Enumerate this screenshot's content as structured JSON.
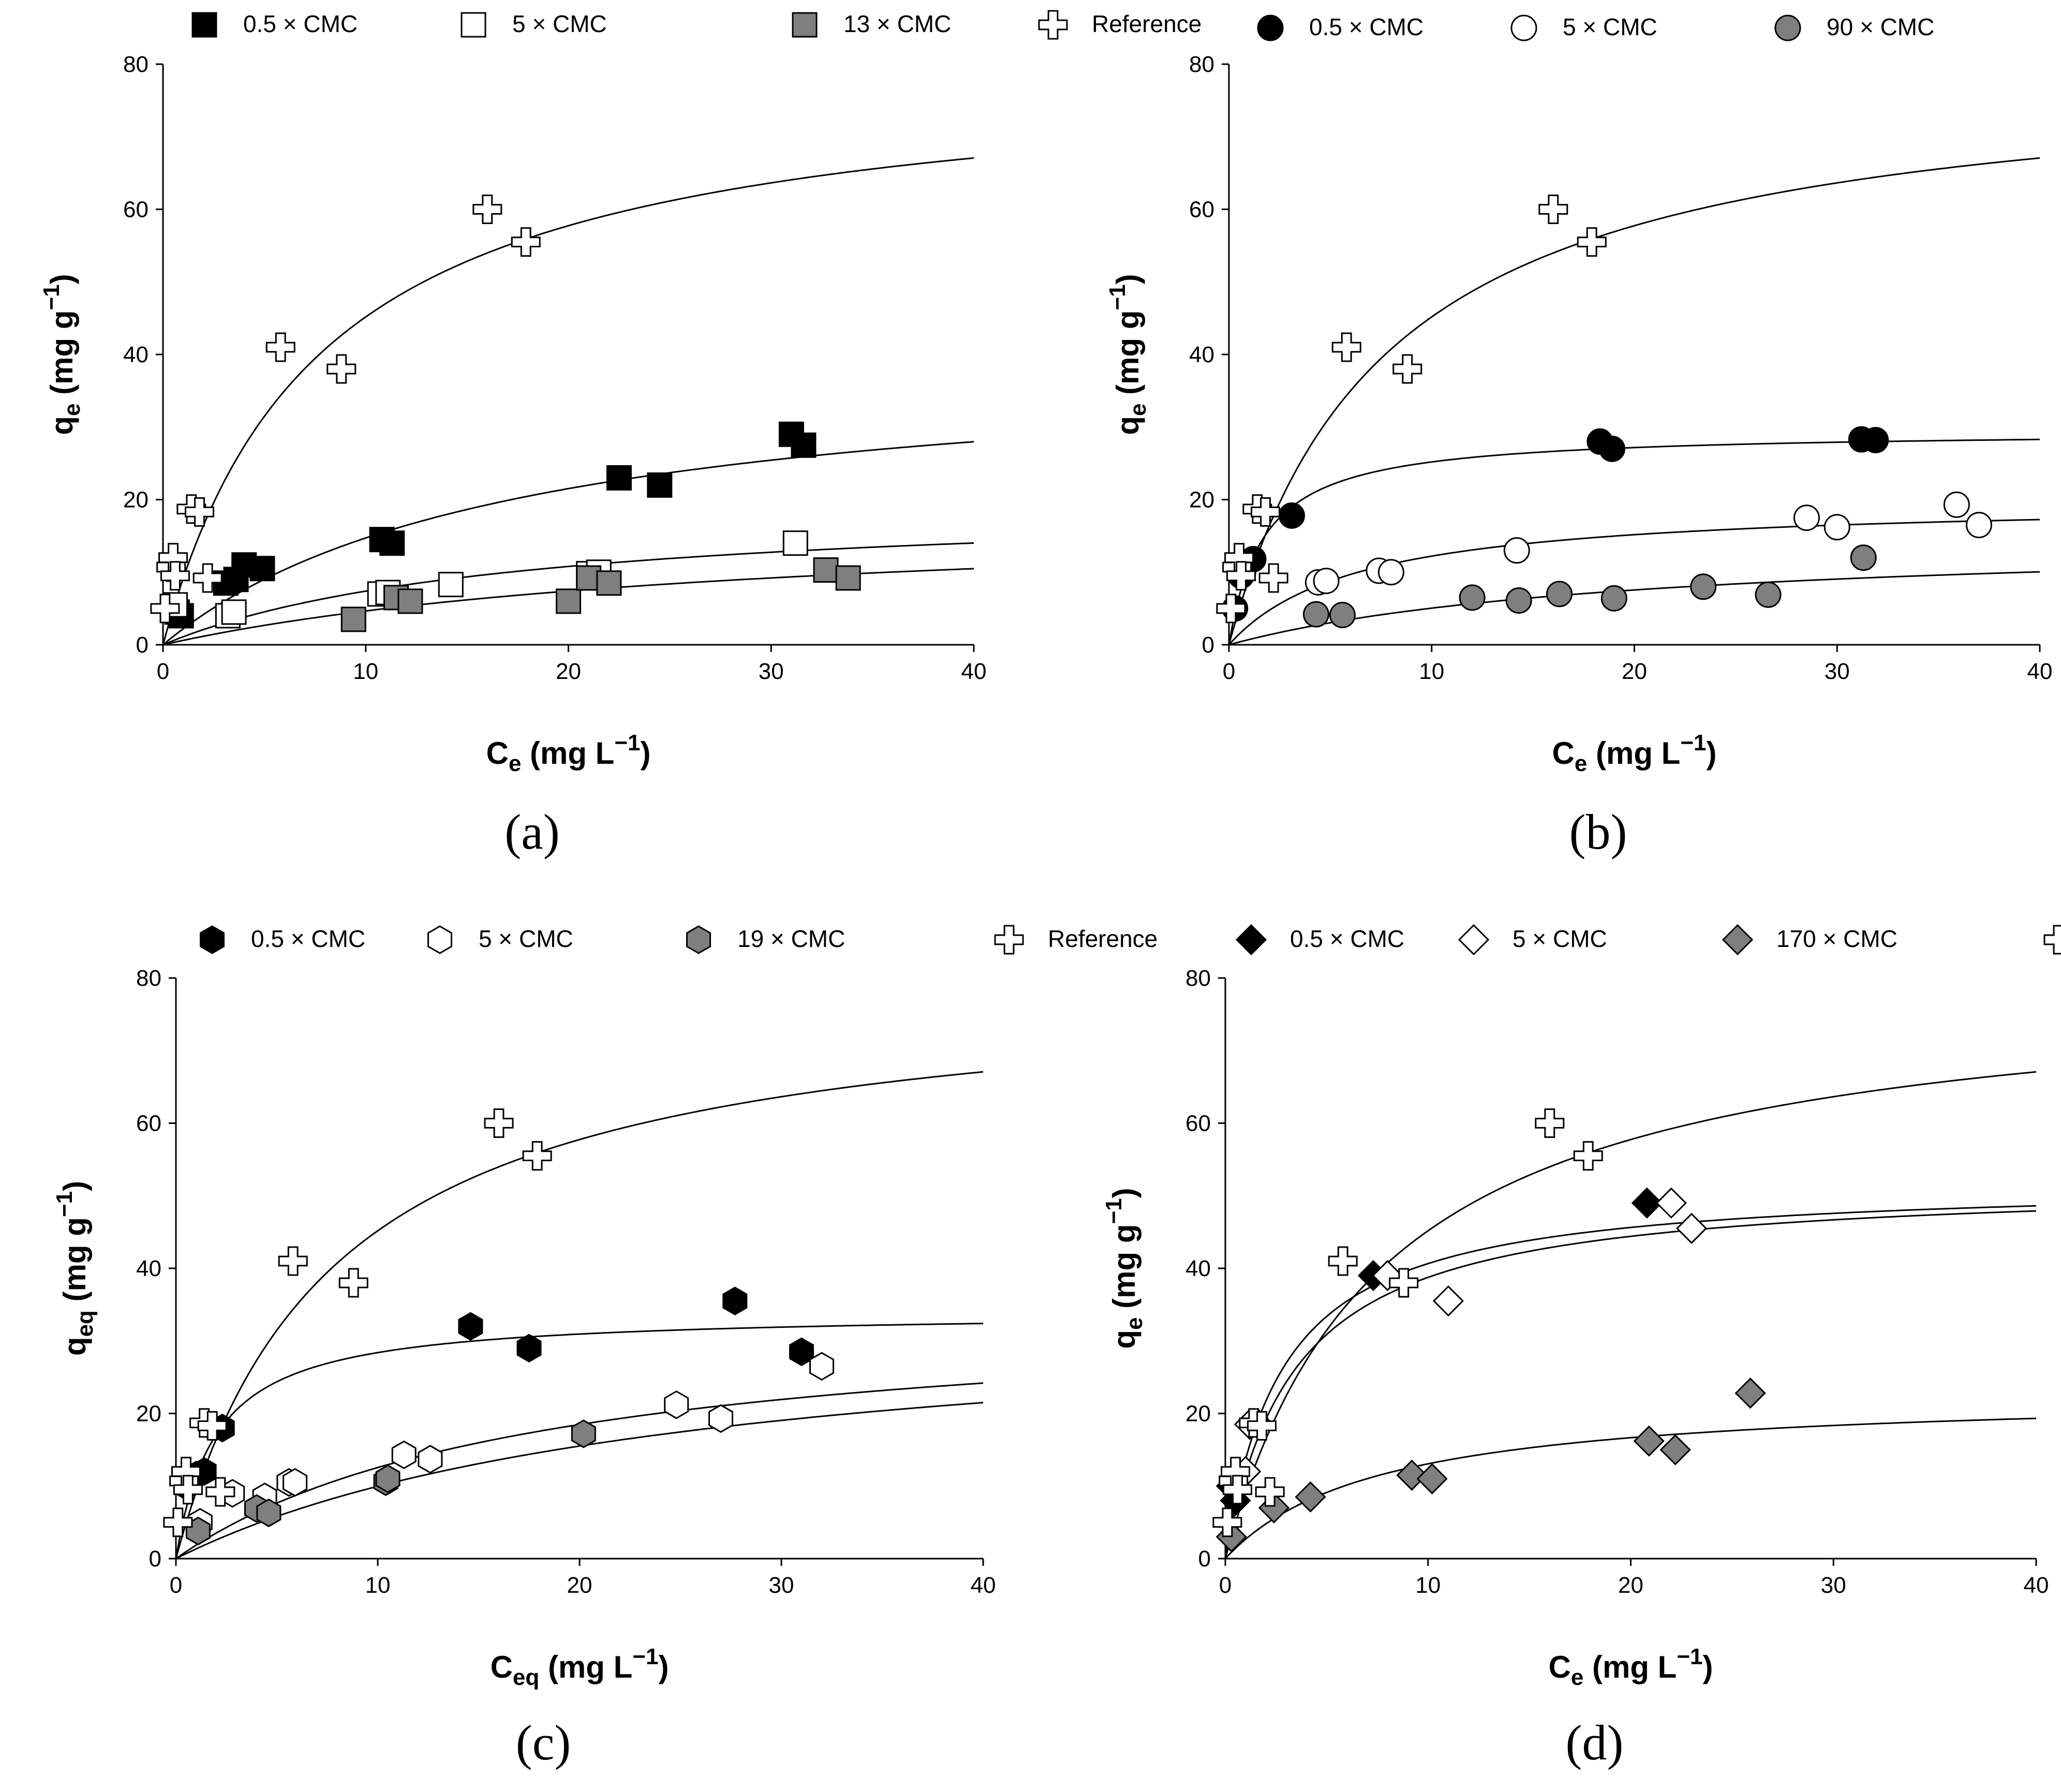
{
  "figure": {
    "panels": [
      "a",
      "b",
      "c",
      "d"
    ]
  },
  "style": {
    "black": "#000000",
    "white": "#ffffff",
    "gray": "#7f7f7f"
  },
  "chart_data": [
    {
      "panel_label": "(a)",
      "type": "scatter",
      "marker": "square",
      "xlabel": {
        "main": "C",
        "sub": "e",
        "unit": " (mg L",
        "sup": "−1",
        "close": ")"
      },
      "ylabel": {
        "main": "q",
        "sub": "e",
        "unit": " (mg g",
        "sup": "−1",
        "close": ")"
      },
      "xlim": [
        0,
        40
      ],
      "ylim": [
        0,
        80
      ],
      "xticks": [
        "0",
        "10",
        "20",
        "30",
        "40"
      ],
      "yticks": [
        "0",
        "20",
        "40",
        "60",
        "80"
      ],
      "legend": [
        "0.5 × CMC",
        "5 × CMC",
        "13 × CMC",
        "Reference"
      ],
      "series": [
        {
          "name": "0.5 × CMC",
          "fill": "black",
          "points": [
            [
              0.7,
              4.5
            ],
            [
              0.9,
              4
            ],
            [
              3.1,
              8.5
            ],
            [
              3.6,
              9
            ],
            [
              4,
              11
            ],
            [
              4.9,
              10.5
            ],
            [
              10.8,
              14.5
            ],
            [
              11.3,
              14
            ],
            [
              22.5,
              23
            ],
            [
              24.5,
              22
            ],
            [
              31,
              29
            ],
            [
              31.6,
              27.5
            ]
          ],
          "fit": {
            "qmax": 40,
            "K": 0.0582
          }
        },
        {
          "name": "5 × CMC",
          "fill": "white",
          "points": [
            [
              0.6,
              5.5
            ],
            [
              3.2,
              4
            ],
            [
              3.5,
              4.5
            ],
            [
              10.7,
              7
            ],
            [
              11.1,
              7.2
            ],
            [
              14.2,
              8.3
            ],
            [
              21,
              9.8
            ],
            [
              21.5,
              10
            ],
            [
              31.2,
              14
            ]
          ],
          "fit": {
            "qmax": 20,
            "K": 0.0586
          }
        },
        {
          "name": "13 × CMC",
          "fill": "gray",
          "points": [
            [
              9.4,
              3.5
            ],
            [
              11.5,
              6.5
            ],
            [
              12.2,
              6
            ],
            [
              20,
              6
            ],
            [
              21,
              9.2
            ],
            [
              22,
              8.5
            ],
            [
              32.7,
              10.3
            ],
            [
              33.8,
              9.2
            ]
          ],
          "fit": {
            "qmax": 18,
            "K": 0.0349
          }
        },
        {
          "name": "Reference",
          "fill": "white",
          "points": [
            [
              0.1,
              5
            ],
            [
              0.4,
              10.7
            ],
            [
              0.5,
              12
            ],
            [
              0.6,
              9.5
            ],
            [
              1.4,
              18.7
            ],
            [
              1.8,
              18.3
            ],
            [
              2.2,
              9.2
            ],
            [
              5.8,
              41
            ],
            [
              8.8,
              38
            ],
            [
              16,
              60
            ],
            [
              17.9,
              55.5
            ]
          ],
          "fit": {
            "qmax": 80,
            "K": 0.1297
          }
        }
      ]
    },
    {
      "panel_label": "(b)",
      "type": "scatter",
      "marker": "circle",
      "xlabel": {
        "main": "C",
        "sub": "e",
        "unit": " (mg L",
        "sup": "−1",
        "close": ")"
      },
      "ylabel": {
        "main": "q",
        "sub": "e",
        "unit": " (mg g",
        "sup": "−1",
        "close": ")"
      },
      "xlim": [
        0,
        40
      ],
      "ylim": [
        0,
        80
      ],
      "xticks": [
        "0",
        "10",
        "20",
        "30",
        "40"
      ],
      "yticks": [
        "0",
        "20",
        "40",
        "60",
        "80"
      ],
      "legend": [
        "0.5 × CMC",
        "5 × CMC",
        "90 × CMC",
        "Reference"
      ],
      "series": [
        {
          "name": "0.5 × CMC",
          "fill": "black",
          "points": [
            [
              0.3,
              5
            ],
            [
              0.6,
              9.5
            ],
            [
              0.7,
              10
            ],
            [
              1.2,
              11.8
            ],
            [
              3.1,
              17.8
            ],
            [
              18.3,
              28
            ],
            [
              18.9,
              27
            ],
            [
              31.2,
              28.3
            ],
            [
              31.9,
              28.2
            ]
          ],
          "fit": {
            "qmax": 29.5,
            "K": 0.5845
          }
        },
        {
          "name": "5 × CMC",
          "fill": "white",
          "points": [
            [
              4.4,
              8.6
            ],
            [
              4.8,
              8.8
            ],
            [
              7.4,
              10.2
            ],
            [
              8,
              10
            ],
            [
              14.2,
              13
            ],
            [
              28.5,
              17.5
            ],
            [
              30,
              16.2
            ],
            [
              35.9,
              19.3
            ],
            [
              37,
              16.5
            ]
          ],
          "fit": {
            "qmax": 20,
            "K": 0.1568
          }
        },
        {
          "name": "90 × CMC",
          "fill": "gray",
          "points": [
            [
              4.3,
              4.2
            ],
            [
              5.6,
              4.1
            ],
            [
              12,
              6.5
            ],
            [
              14.3,
              6.1
            ],
            [
              16.3,
              7
            ],
            [
              19,
              6.4
            ],
            [
              23.4,
              8
            ],
            [
              26.6,
              6.9
            ],
            [
              31.3,
              12
            ]
          ],
          "fit": {
            "qmax": 15,
            "K": 0.0507
          }
        },
        {
          "name": "Reference",
          "fill": "white",
          "points": [
            [
              0.1,
              5
            ],
            [
              0.4,
              10.7
            ],
            [
              0.5,
              12
            ],
            [
              0.6,
              9.5
            ],
            [
              1.4,
              18.7
            ],
            [
              1.8,
              18.3
            ],
            [
              2.2,
              9.2
            ],
            [
              5.8,
              41
            ],
            [
              8.8,
              38
            ],
            [
              16,
              60
            ],
            [
              17.9,
              55.5
            ]
          ],
          "fit": {
            "qmax": 80,
            "K": 0.1297
          }
        }
      ]
    },
    {
      "panel_label": "(c)",
      "type": "scatter",
      "marker": "hexagon",
      "xlabel": {
        "main": "C",
        "sub": "eq",
        "unit": " (mg L",
        "sup": "−1",
        "close": ")"
      },
      "ylabel": {
        "main": "q",
        "sub": "eq",
        "unit": " (mg g",
        "sup": "−1",
        "close": ")"
      },
      "xlim": [
        0,
        40
      ],
      "ylim": [
        0,
        80
      ],
      "xticks": [
        "0",
        "10",
        "20",
        "30",
        "40"
      ],
      "yticks": [
        "0",
        "20",
        "40",
        "60",
        "80"
      ],
      "legend": [
        "0.5 × CMC",
        "5 × CMC",
        "19 × CMC",
        "Reference"
      ],
      "series": [
        {
          "name": "0.5 × CMC",
          "fill": "black",
          "points": [
            [
              0.5,
              10
            ],
            [
              1,
              11.5
            ],
            [
              1.4,
              12
            ],
            [
              2.3,
              18
            ],
            [
              14.6,
              32
            ],
            [
              17.5,
              29
            ],
            [
              27.7,
              35.5
            ],
            [
              31,
              28.5
            ]
          ],
          "fit": {
            "qmax": 34,
            "K": 0.5059
          }
        },
        {
          "name": "5 × CMC",
          "fill": "white",
          "points": [
            [
              1.2,
              5
            ],
            [
              2.8,
              9
            ],
            [
              4.4,
              8.5
            ],
            [
              5.6,
              10.5
            ],
            [
              5.9,
              10.5
            ],
            [
              11.3,
              14.3
            ],
            [
              12.6,
              13.7
            ],
            [
              24.8,
              21.2
            ],
            [
              27,
              19.3
            ],
            [
              32,
              26.5
            ]
          ],
          "fit": {
            "qmax": 35,
            "K": 0.0559
          }
        },
        {
          "name": "19 × CMC",
          "fill": "gray",
          "points": [
            [
              1.1,
              3.8
            ],
            [
              4,
              6.9
            ],
            [
              4.6,
              6.3
            ],
            [
              10.4,
              10.6
            ],
            [
              10.5,
              11
            ],
            [
              20.2,
              17.2
            ]
          ],
          "fit": {
            "qmax": 35,
            "K": 0.0398
          }
        },
        {
          "name": "Reference",
          "fill": "white",
          "points": [
            [
              0.1,
              5
            ],
            [
              0.4,
              10.7
            ],
            [
              0.5,
              12
            ],
            [
              0.6,
              9.5
            ],
            [
              1.4,
              18.7
            ],
            [
              1.8,
              18.3
            ],
            [
              2.2,
              9.2
            ],
            [
              5.8,
              41
            ],
            [
              8.8,
              38
            ],
            [
              16,
              60
            ],
            [
              17.9,
              55.5
            ]
          ],
          "fit": {
            "qmax": 80,
            "K": 0.1297
          }
        }
      ]
    },
    {
      "panel_label": "(d)",
      "type": "scatter",
      "marker": "diamond",
      "xlabel": {
        "main": "C",
        "sub": "e",
        "unit": " (mg L",
        "sup": "−1",
        "close": ")"
      },
      "ylabel": {
        "main": "q",
        "sub": "e",
        "unit": " (mg g",
        "sup": "−1",
        "close": ")"
      },
      "xlim": [
        0,
        40
      ],
      "ylim": [
        0,
        80
      ],
      "xticks": [
        "0",
        "10",
        "20",
        "30",
        "40"
      ],
      "yticks": [
        "0",
        "20",
        "40",
        "60",
        "80"
      ],
      "legend": [
        "0.5 × CMC",
        "5 × CMC",
        "170 × CMC",
        "Reference"
      ],
      "series": [
        {
          "name": "0.5 × CMC",
          "fill": "black",
          "points": [
            [
              0.3,
              10
            ],
            [
              0.5,
              8
            ],
            [
              7.3,
              39
            ],
            [
              20.8,
              49
            ]
          ],
          "fit": {
            "qmax": 52,
            "K": 0.3583
          }
        },
        {
          "name": "5 × CMC",
          "fill": "white",
          "points": [
            [
              0.6,
              11.5
            ],
            [
              1,
              12
            ],
            [
              1.2,
              18.5
            ],
            [
              1.6,
              18.6
            ],
            [
              8,
              39
            ],
            [
              11,
              35.5
            ],
            [
              22,
              49
            ],
            [
              23,
              45.5
            ]
          ],
          "fit": {
            "qmax": 52,
            "K": 0.2925
          }
        },
        {
          "name": "170 × CMC",
          "fill": "gray",
          "points": [
            [
              0.3,
              3
            ],
            [
              2.4,
              7
            ],
            [
              4.2,
              8.5
            ],
            [
              9.2,
              11.5
            ],
            [
              10.2,
              11
            ],
            [
              20.9,
              16.2
            ],
            [
              22.2,
              15
            ],
            [
              25.9,
              22.8
            ]
          ],
          "fit": {
            "qmax": 23,
            "K": 0.1314
          }
        },
        {
          "name": "Reference",
          "fill": "white",
          "points": [
            [
              0.1,
              5
            ],
            [
              0.4,
              10.7
            ],
            [
              0.5,
              12
            ],
            [
              0.6,
              9.5
            ],
            [
              1.4,
              18.7
            ],
            [
              1.8,
              18.3
            ],
            [
              2.2,
              9.2
            ],
            [
              5.8,
              41
            ],
            [
              8.8,
              38
            ],
            [
              16,
              60
            ],
            [
              17.9,
              55.5
            ]
          ],
          "fit": {
            "qmax": 80,
            "K": 0.1297
          }
        }
      ]
    }
  ]
}
